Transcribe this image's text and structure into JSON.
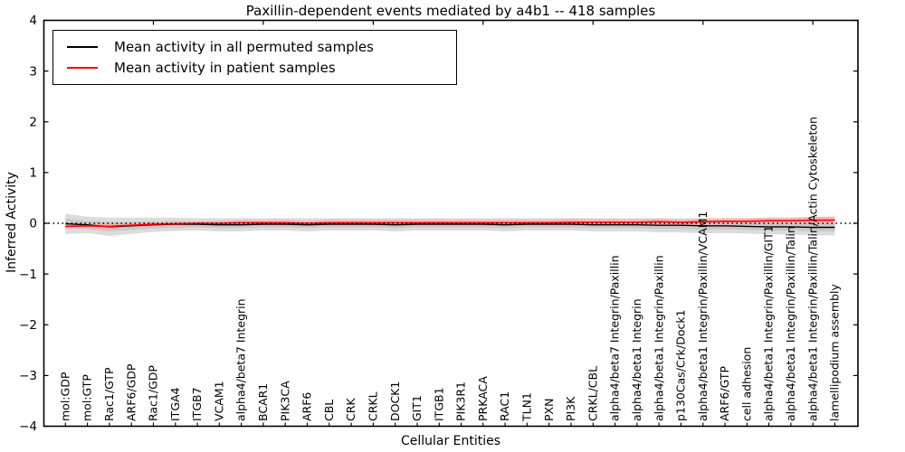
{
  "chart_data": {
    "type": "line",
    "title": "Paxillin-dependent events mediated by a4b1 -- 418 samples",
    "xlabel": "Cellular Entities",
    "ylabel": "Inferred Activity",
    "ylim": [
      -4,
      4
    ],
    "yticks": [
      4,
      3,
      2,
      1,
      0,
      -1,
      -2,
      -3,
      -4
    ],
    "grid": false,
    "legend_position": "upper left",
    "baseline": {
      "y": 0,
      "style": "dotted",
      "color": "#000000"
    },
    "categories": [
      "mol:GDP",
      "mol:GTP",
      "Rac1/GTP",
      "ARF6/GDP",
      "Rac1/GDP",
      "ITGA4",
      "ITGB7",
      "VCAM1",
      "alpha4/beta7 Integrin",
      "BCAR1",
      "PIK3CA",
      "ARF6",
      "CBL",
      "CRK",
      "CRKL",
      "DOCK1",
      "GIT1",
      "ITGB1",
      "PIK3R1",
      "PRKACA",
      "RAC1",
      "TLN1",
      "PXN",
      "PI3K",
      "CRKL/CBL",
      "alpha4/beta7 Integrin/Paxillin",
      "alpha4/beta1 Integrin",
      "alpha4/beta1 Integrin/Paxillin",
      "p130Cas/Crk/Dock1",
      "alpha4/beta1 Integrin/Paxillin/VCAM1",
      "ARF6/GTP",
      "cell adhesion",
      "alpha4/beta1 Integrin/Paxillin/GIT1",
      "alpha4/beta1 Integrin/Paxillin/Talin",
      "alpha4/beta1 Integrin/Paxillin/Talin/Actin Cytoskeleton",
      "lamellipodium assembly"
    ],
    "series": [
      {
        "name": "Mean activity in all permuted samples",
        "color": "#000000",
        "band_color": "#dcdcdc",
        "inner_band_color": "#c9c9c9",
        "values": [
          -0.01,
          -0.03,
          -0.07,
          -0.05,
          -0.03,
          -0.02,
          -0.02,
          -0.03,
          -0.03,
          -0.02,
          -0.02,
          -0.03,
          -0.02,
          -0.02,
          -0.02,
          -0.03,
          -0.02,
          -0.02,
          -0.02,
          -0.02,
          -0.03,
          -0.02,
          -0.02,
          -0.02,
          -0.03,
          -0.03,
          -0.03,
          -0.04,
          -0.04,
          -0.05,
          -0.05,
          -0.06,
          -0.07,
          -0.07,
          -0.08,
          -0.08
        ],
        "band_halfwidth": [
          0.2,
          0.16,
          0.18,
          0.16,
          0.14,
          0.13,
          0.12,
          0.13,
          0.13,
          0.12,
          0.12,
          0.13,
          0.12,
          0.12,
          0.12,
          0.13,
          0.12,
          0.12,
          0.12,
          0.12,
          0.13,
          0.12,
          0.12,
          0.12,
          0.13,
          0.13,
          0.13,
          0.14,
          0.14,
          0.15,
          0.14,
          0.14,
          0.15,
          0.15,
          0.16,
          0.16
        ]
      },
      {
        "name": "Mean activity in patient samples",
        "color": "#ff0000",
        "band_color": "#f7b3b3",
        "values": [
          -0.06,
          -0.05,
          -0.06,
          -0.04,
          -0.02,
          -0.01,
          0.0,
          0.0,
          0.01,
          0.01,
          0.01,
          0.0,
          0.01,
          0.01,
          0.01,
          0.01,
          0.01,
          0.01,
          0.01,
          0.01,
          0.01,
          0.01,
          0.01,
          0.02,
          0.02,
          0.02,
          0.02,
          0.03,
          0.02,
          0.03,
          0.04,
          0.04,
          0.05,
          0.05,
          0.06,
          0.06
        ],
        "band_halfwidth": [
          0.04,
          0.04,
          0.05,
          0.04,
          0.04,
          0.04,
          0.04,
          0.05,
          0.05,
          0.05,
          0.06,
          0.05,
          0.06,
          0.06,
          0.06,
          0.06,
          0.06,
          0.06,
          0.06,
          0.06,
          0.06,
          0.06,
          0.06,
          0.07,
          0.06,
          0.06,
          0.06,
          0.06,
          0.05,
          0.06,
          0.06,
          0.06,
          0.06,
          0.06,
          0.07,
          0.07
        ]
      }
    ]
  }
}
